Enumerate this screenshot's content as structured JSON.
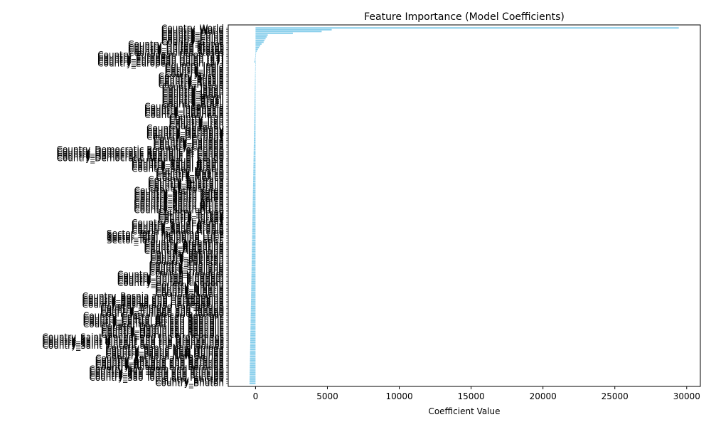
{
  "chart_data": {
    "type": "bar",
    "orientation": "horizontal",
    "title": "Feature Importance (Model Coefficients)",
    "xlabel": "Coefficient Value",
    "ylabel": "",
    "xlim": [
      -1900,
      30950
    ],
    "xticks": [
      0,
      5000,
      10000,
      15000,
      20000,
      25000,
      30000
    ],
    "bar_color": "#87CEEB",
    "grid": false,
    "legend": "none",
    "sort": "descending",
    "categories": [
      "Country_World",
      "Country_China",
      "Country_United States",
      "Country_European Union (27)",
      "Country_India",
      "Country_Russia",
      "Country_Japan",
      "Country_Brazil",
      "Country_Indonesia",
      "Country_Iran",
      "Country_Germany",
      "Country_Canada",
      "Country_Democratic Republic of Congo",
      "Country_Saudi Arabia",
      "Country_Mexico",
      "Country_Australia",
      "Country_South Korea",
      "Country_South Africa",
      "Country_Turkey",
      "Country_Saudi Arabia",
      "Sector_Total including LUCF",
      "Country_Argentina",
      "Country_Pakistan",
      "Country_Thailand",
      "Country_United Kingdom",
      "Country_Nigeria",
      "Country_Bosnia and Herzegovina",
      "Country_Trinidad and Tobago",
      "Country_Central African Republic",
      "Country_Dominican Republic",
      "Country_Saint Vincent and the Grenadines",
      "Country_Papua New Guinea",
      "Country_Antigua and Barbuda",
      "Country_Sao Tome and Principe",
      "Country_Bhutan"
    ],
    "values": [
      29450,
      5300,
      4600,
      2600,
      850,
      780,
      700,
      620,
      560,
      420,
      330,
      240,
      160,
      90,
      40,
      10,
      -20,
      -40,
      -60,
      -80,
      -90,
      -110,
      -130,
      -150,
      -170,
      -190,
      -220,
      -240,
      -270,
      -290,
      -320,
      -340,
      -370,
      -400,
      -420
    ],
    "total_bars": 200
  }
}
